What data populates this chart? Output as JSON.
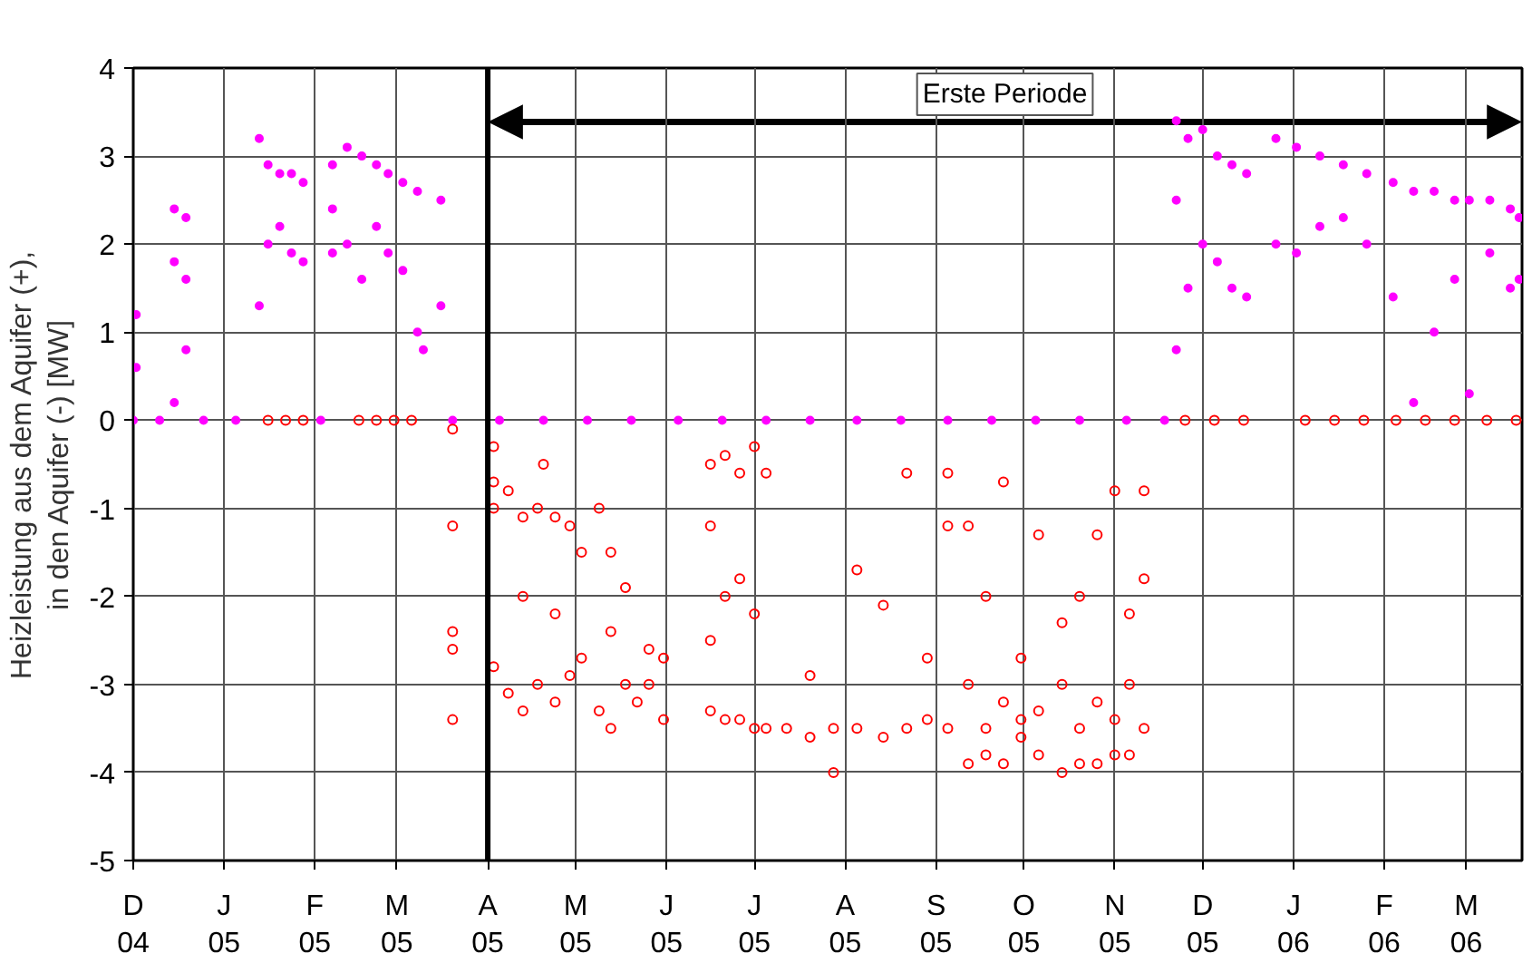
{
  "chart_data": {
    "type": "scatter",
    "ylabel": "Heizleistung aus dem Aquifer (+),\nin den Aquifer (-) [MW]",
    "annotations": [
      "Erste Periode"
    ],
    "xlim": [
      "2004-12-01",
      "2006-03-20"
    ],
    "xticks": [
      {
        "value": "2004-12-01",
        "label": "D\n04"
      },
      {
        "value": "2005-01-01",
        "label": "J\n05"
      },
      {
        "value": "2005-02-01",
        "label": "F\n05"
      },
      {
        "value": "2005-03-01",
        "label": "M\n05"
      },
      {
        "value": "2005-04-01",
        "label": "A\n05"
      },
      {
        "value": "2005-05-01",
        "label": "M\n05"
      },
      {
        "value": "2005-06-01",
        "label": "J\n05"
      },
      {
        "value": "2005-07-01",
        "label": "J\n05"
      },
      {
        "value": "2005-08-01",
        "label": "A\n05"
      },
      {
        "value": "2005-09-01",
        "label": "S\n05"
      },
      {
        "value": "2005-10-01",
        "label": "O\n05"
      },
      {
        "value": "2005-11-01",
        "label": "N\n05"
      },
      {
        "value": "2005-12-01",
        "label": "D\n05"
      },
      {
        "value": "2006-01-01",
        "label": "J\n06"
      },
      {
        "value": "2006-02-01",
        "label": "F\n06"
      },
      {
        "value": "2006-03-01",
        "label": "M\n06"
      }
    ],
    "ylim": [
      -5,
      4
    ],
    "yticks": [
      -5,
      -4,
      -3,
      -2,
      -1,
      0,
      1,
      2,
      3,
      4
    ],
    "grid": true,
    "marker": "circle",
    "ref_lines": [
      {
        "axis": "x",
        "value": "2005-04-01",
        "color": "#000000"
      }
    ],
    "series": [
      {
        "color": "#ff00ff",
        "x": [
          "2004-12-01",
          "2004-12-02",
          "2004-12-02",
          "2004-12-15",
          "2004-12-15",
          "2004-12-15",
          "2004-12-19",
          "2004-12-19",
          "2004-12-19",
          "2005-01-13",
          "2005-01-13",
          "2005-01-16",
          "2005-01-16",
          "2005-01-20",
          "2005-01-20",
          "2005-01-24",
          "2005-01-24",
          "2005-01-28",
          "2005-01-28",
          "2005-02-07",
          "2005-02-07",
          "2005-02-07",
          "2005-02-12",
          "2005-02-12",
          "2005-02-17",
          "2005-02-17",
          "2005-02-22",
          "2005-02-22",
          "2005-02-26",
          "2005-02-26",
          "2005-03-03",
          "2005-03-03",
          "2005-03-08",
          "2005-03-08",
          "2005-03-10",
          "2005-03-16",
          "2005-03-16",
          "2004-12-10",
          "2004-12-25",
          "2005-01-05",
          "2005-02-03",
          "2005-03-20",
          "2005-04-05",
          "2005-04-20",
          "2005-05-05",
          "2005-05-20",
          "2005-06-05",
          "2005-06-20",
          "2005-07-05",
          "2005-07-20",
          "2005-08-05",
          "2005-08-20",
          "2005-09-05",
          "2005-09-20",
          "2005-10-05",
          "2005-10-20",
          "2005-11-05",
          "2005-11-18",
          "2005-11-22",
          "2005-11-22",
          "2005-11-22",
          "2005-11-26",
          "2005-11-26",
          "2005-12-01",
          "2005-12-01",
          "2005-12-06",
          "2005-12-06",
          "2005-12-11",
          "2005-12-11",
          "2005-12-16",
          "2005-12-16",
          "2005-12-26",
          "2005-12-26",
          "2006-01-02",
          "2006-01-02",
          "2006-01-10",
          "2006-01-10",
          "2006-01-18",
          "2006-01-18",
          "2006-01-26",
          "2006-01-26",
          "2006-02-04",
          "2006-02-04",
          "2006-02-11",
          "2006-02-11",
          "2006-02-18",
          "2006-02-18",
          "2006-02-25",
          "2006-02-25",
          "2006-03-02",
          "2006-03-02",
          "2006-03-09",
          "2006-03-09",
          "2006-03-16",
          "2006-03-16",
          "2006-03-19",
          "2006-03-19"
        ],
        "values": [
          0,
          1.2,
          0.6,
          2.4,
          1.8,
          0.2,
          2.3,
          1.6,
          0.8,
          3.2,
          1.3,
          2.9,
          2.0,
          2.8,
          2.2,
          2.8,
          1.9,
          2.7,
          1.8,
          2.9,
          1.9,
          2.4,
          3.1,
          2.0,
          3.0,
          1.6,
          2.9,
          2.2,
          2.8,
          1.9,
          2.7,
          1.7,
          2.6,
          1.0,
          0.8,
          2.5,
          1.3,
          0,
          0,
          0,
          0,
          0,
          0,
          0,
          0,
          0,
          0,
          0,
          0,
          0,
          0,
          0,
          0,
          0,
          0,
          0,
          0,
          0,
          3.4,
          2.5,
          0.8,
          3.2,
          1.5,
          3.3,
          2.0,
          3.0,
          1.8,
          2.9,
          1.5,
          2.8,
          1.4,
          3.2,
          2.0,
          3.1,
          1.9,
          3.0,
          2.2,
          2.9,
          2.3,
          2.8,
          2.0,
          2.7,
          1.4,
          2.6,
          0.2,
          2.6,
          1.0,
          2.5,
          1.6,
          2.5,
          0.3,
          2.5,
          1.9,
          2.4,
          1.5,
          2.3,
          1.6
        ]
      },
      {
        "color": "#ff0000",
        "x": [
          "2005-01-16",
          "2005-01-22",
          "2005-01-28",
          "2005-02-16",
          "2005-02-22",
          "2005-02-28",
          "2005-03-06",
          "2005-03-20",
          "2005-03-20",
          "2005-03-20",
          "2005-03-20",
          "2005-03-20",
          "2005-04-03",
          "2005-04-03",
          "2005-04-03",
          "2005-04-03",
          "2005-04-08",
          "2005-04-08",
          "2005-04-13",
          "2005-04-13",
          "2005-04-13",
          "2005-04-18",
          "2005-04-18",
          "2005-04-20",
          "2005-04-24",
          "2005-04-24",
          "2005-04-24",
          "2005-04-29",
          "2005-04-29",
          "2005-05-03",
          "2005-05-03",
          "2005-05-09",
          "2005-05-09",
          "2005-05-13",
          "2005-05-13",
          "2005-05-13",
          "2005-05-18",
          "2005-05-18",
          "2005-05-22",
          "2005-05-26",
          "2005-05-26",
          "2005-05-31",
          "2005-05-31",
          "2005-06-16",
          "2005-06-16",
          "2005-06-16",
          "2005-06-16",
          "2005-06-21",
          "2005-06-21",
          "2005-06-21",
          "2005-06-26",
          "2005-06-26",
          "2005-06-26",
          "2005-07-01",
          "2005-07-01",
          "2005-07-01",
          "2005-07-05",
          "2005-07-05",
          "2005-07-12",
          "2005-07-20",
          "2005-07-20",
          "2005-07-28",
          "2005-07-28",
          "2005-08-05",
          "2005-08-05",
          "2005-08-14",
          "2005-08-14",
          "2005-08-22",
          "2005-08-22",
          "2005-08-29",
          "2005-08-29",
          "2005-09-05",
          "2005-09-05",
          "2005-09-05",
          "2005-09-12",
          "2005-09-12",
          "2005-09-12",
          "2005-09-18",
          "2005-09-18",
          "2005-09-18",
          "2005-09-24",
          "2005-09-24",
          "2005-09-24",
          "2005-09-30",
          "2005-09-30",
          "2005-09-30",
          "2005-10-06",
          "2005-10-06",
          "2005-10-06",
          "2005-10-14",
          "2005-10-14",
          "2005-10-14",
          "2005-10-20",
          "2005-10-20",
          "2005-10-20",
          "2005-10-26",
          "2005-10-26",
          "2005-10-26",
          "2005-11-01",
          "2005-11-01",
          "2005-11-01",
          "2005-11-06",
          "2005-11-06",
          "2005-11-06",
          "2005-11-11",
          "2005-11-11",
          "2005-11-11",
          "2005-11-25",
          "2005-12-05",
          "2005-12-15",
          "2006-01-05",
          "2006-01-15",
          "2006-01-25",
          "2006-02-05",
          "2006-02-15",
          "2006-02-25",
          "2006-03-08",
          "2006-03-18"
        ],
        "values": [
          0,
          0,
          0,
          0,
          0,
          0,
          0,
          -0.1,
          -1.2,
          -2.4,
          -2.6,
          -3.4,
          -0.3,
          -0.7,
          -1.0,
          -2.8,
          -0.8,
          -3.1,
          -1.1,
          -2.0,
          -3.3,
          -1.0,
          -3.0,
          -0.5,
          -1.1,
          -2.2,
          -3.2,
          -1.2,
          -2.9,
          -1.5,
          -2.7,
          -1.0,
          -3.3,
          -1.5,
          -2.4,
          -3.5,
          -1.9,
          -3.0,
          -3.2,
          -2.6,
          -3.0,
          -2.7,
          -3.4,
          -0.5,
          -1.2,
          -2.5,
          -3.3,
          -0.4,
          -2.0,
          -3.4,
          -0.6,
          -1.8,
          -3.4,
          -0.3,
          -2.2,
          -3.5,
          -0.6,
          -3.5,
          -3.5,
          -3.6,
          -2.9,
          -3.5,
          -4.0,
          -3.5,
          -1.7,
          -3.6,
          -2.1,
          -3.5,
          -0.6,
          -3.4,
          -2.7,
          -3.5,
          -0.6,
          -1.2,
          -3.0,
          -3.9,
          -1.2,
          -3.5,
          -2.0,
          -3.8,
          -3.2,
          -3.9,
          -0.7,
          -3.4,
          -3.6,
          -2.7,
          -3.3,
          -3.8,
          -1.3,
          -3.0,
          -4.0,
          -2.3,
          -3.5,
          -3.9,
          -2.0,
          -3.2,
          -3.9,
          -1.3,
          -3.4,
          -3.8,
          -0.8,
          -3.0,
          -3.8,
          -2.2,
          -3.5,
          -0.8,
          -1.8,
          0,
          0,
          0,
          0,
          0,
          0,
          0,
          0,
          0,
          0,
          0
        ]
      }
    ]
  }
}
